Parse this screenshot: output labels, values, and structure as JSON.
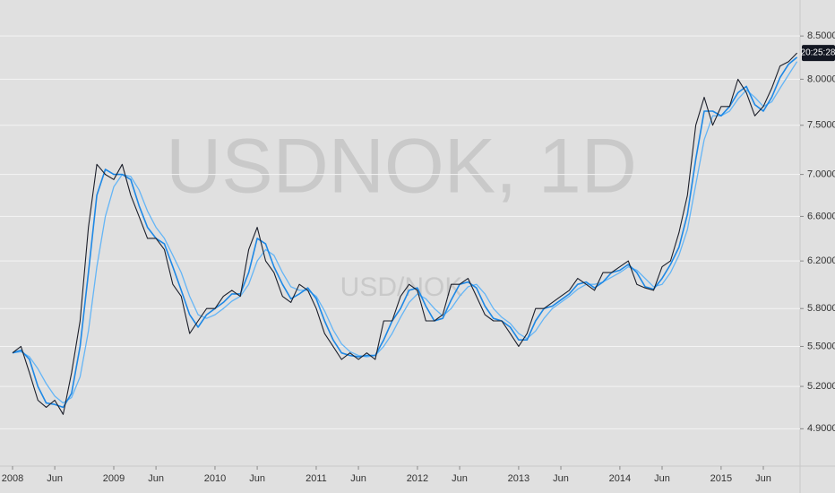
{
  "chart_data": {
    "type": "line",
    "watermark": "USDNOK, 1D",
    "subwatermark": "USD/NOK",
    "price_label": "20:25:28",
    "log_scale": true,
    "grid": true,
    "xlim": [
      2007.876,
      2015.78
    ],
    "ylim": [
      4.65,
      8.94
    ],
    "yticks": [
      {
        "value": 4.9,
        "label": "4.9000"
      },
      {
        "value": 5.2,
        "label": "5.2000"
      },
      {
        "value": 5.5,
        "label": "5.5000"
      },
      {
        "value": 5.8,
        "label": "5.8000"
      },
      {
        "value": 6.2,
        "label": "6.2000"
      },
      {
        "value": 6.6,
        "label": "6.6000"
      },
      {
        "value": 7.0,
        "label": "7.0000"
      },
      {
        "value": 7.5,
        "label": "7.5000"
      },
      {
        "value": 8.0,
        "label": "8.0000"
      },
      {
        "value": 8.5,
        "label": "8.5000"
      }
    ],
    "xticks": [
      {
        "value": 2008,
        "label": "2008"
      },
      {
        "value": 2008.417,
        "label": "Jun"
      },
      {
        "value": 2009,
        "label": "2009"
      },
      {
        "value": 2009.417,
        "label": "Jun"
      },
      {
        "value": 2010,
        "label": "2010"
      },
      {
        "value": 2010.417,
        "label": "Jun"
      },
      {
        "value": 2011,
        "label": "2011"
      },
      {
        "value": 2011.417,
        "label": "Jun"
      },
      {
        "value": 2012,
        "label": "2012"
      },
      {
        "value": 2012.417,
        "label": "Jun"
      },
      {
        "value": 2013,
        "label": "2013"
      },
      {
        "value": 2013.417,
        "label": "Jun"
      },
      {
        "value": 2014,
        "label": "2014"
      },
      {
        "value": 2014.417,
        "label": "Jun"
      },
      {
        "value": 2015,
        "label": "2015"
      },
      {
        "value": 2015.417,
        "label": "Jun"
      }
    ],
    "x": [
      2008,
      2008.083,
      2008.167,
      2008.25,
      2008.333,
      2008.417,
      2008.5,
      2008.583,
      2008.667,
      2008.75,
      2008.833,
      2008.917,
      2009,
      2009.083,
      2009.167,
      2009.25,
      2009.333,
      2009.417,
      2009.5,
      2009.583,
      2009.667,
      2009.75,
      2009.833,
      2009.917,
      2010,
      2010.083,
      2010.167,
      2010.25,
      2010.333,
      2010.417,
      2010.5,
      2010.583,
      2010.667,
      2010.75,
      2010.833,
      2010.917,
      2011,
      2011.083,
      2011.167,
      2011.25,
      2011.333,
      2011.417,
      2011.5,
      2011.583,
      2011.667,
      2011.75,
      2011.833,
      2011.917,
      2012,
      2012.083,
      2012.167,
      2012.25,
      2012.333,
      2012.417,
      2012.5,
      2012.583,
      2012.667,
      2012.75,
      2012.833,
      2012.917,
      2013,
      2013.083,
      2013.167,
      2013.25,
      2013.333,
      2013.417,
      2013.5,
      2013.583,
      2013.667,
      2013.75,
      2013.833,
      2013.917,
      2014,
      2014.083,
      2014.167,
      2014.25,
      2014.333,
      2014.417,
      2014.5,
      2014.583,
      2014.667,
      2014.75,
      2014.833,
      2014.917,
      2015,
      2015.083,
      2015.167,
      2015.25,
      2015.333,
      2015.417,
      2015.5,
      2015.583,
      2015.667,
      2015.75
    ],
    "series": [
      {
        "color": "#64b5f6",
        "width": 1.3,
        "values": [
          5.45,
          5.46,
          5.42,
          5.33,
          5.22,
          5.13,
          5.08,
          5.12,
          5.27,
          5.62,
          6.15,
          6.6,
          6.88,
          7.0,
          6.98,
          6.85,
          6.65,
          6.5,
          6.4,
          6.25,
          6.1,
          5.9,
          5.75,
          5.72,
          5.75,
          5.8,
          5.86,
          5.9,
          6.0,
          6.2,
          6.3,
          6.25,
          6.1,
          5.98,
          5.95,
          5.95,
          5.9,
          5.78,
          5.63,
          5.52,
          5.46,
          5.43,
          5.42,
          5.43,
          5.5,
          5.6,
          5.73,
          5.85,
          5.92,
          5.88,
          5.8,
          5.74,
          5.8,
          5.9,
          5.98,
          6.0,
          5.92,
          5.8,
          5.73,
          5.68,
          5.6,
          5.56,
          5.62,
          5.72,
          5.8,
          5.85,
          5.9,
          5.96,
          6.0,
          6.0,
          6.02,
          6.06,
          6.1,
          6.15,
          6.12,
          6.05,
          5.98,
          6.0,
          6.1,
          6.25,
          6.48,
          6.9,
          7.35,
          7.6,
          7.6,
          7.65,
          7.78,
          7.88,
          7.8,
          7.7,
          7.75,
          7.9,
          8.05,
          8.2
        ]
      },
      {
        "color": "#1e88e5",
        "width": 1.6,
        "values": [
          5.45,
          5.47,
          5.4,
          5.2,
          5.08,
          5.07,
          5.05,
          5.15,
          5.5,
          6.1,
          6.8,
          7.05,
          7.0,
          7.0,
          6.95,
          6.7,
          6.5,
          6.4,
          6.35,
          6.15,
          5.95,
          5.75,
          5.65,
          5.75,
          5.8,
          5.85,
          5.92,
          5.92,
          6.1,
          6.4,
          6.35,
          6.15,
          6.0,
          5.88,
          5.92,
          5.97,
          5.88,
          5.7,
          5.55,
          5.45,
          5.43,
          5.42,
          5.43,
          5.43,
          5.55,
          5.7,
          5.8,
          5.95,
          5.97,
          5.82,
          5.7,
          5.72,
          5.87,
          6.0,
          6.02,
          5.97,
          5.82,
          5.72,
          5.7,
          5.65,
          5.55,
          5.55,
          5.7,
          5.8,
          5.82,
          5.87,
          5.92,
          6.0,
          6.02,
          5.97,
          6.02,
          6.1,
          6.12,
          6.17,
          6.1,
          5.98,
          5.96,
          6.05,
          6.17,
          6.32,
          6.62,
          7.15,
          7.65,
          7.65,
          7.6,
          7.7,
          7.85,
          7.92,
          7.72,
          7.65,
          7.8,
          8.02,
          8.17,
          8.25
        ]
      },
      {
        "color": "#1c1f2a",
        "width": 1.1,
        "values": [
          5.45,
          5.5,
          5.3,
          5.1,
          5.05,
          5.1,
          5.0,
          5.3,
          5.7,
          6.5,
          7.1,
          7.0,
          6.95,
          7.1,
          6.8,
          6.6,
          6.4,
          6.4,
          6.3,
          6.0,
          5.9,
          5.6,
          5.7,
          5.8,
          5.8,
          5.9,
          5.95,
          5.9,
          6.3,
          6.5,
          6.2,
          6.1,
          5.9,
          5.85,
          6.0,
          5.95,
          5.8,
          5.6,
          5.5,
          5.4,
          5.45,
          5.4,
          5.45,
          5.4,
          5.7,
          5.7,
          5.9,
          6.0,
          5.95,
          5.7,
          5.7,
          5.75,
          6.0,
          6.0,
          6.05,
          5.9,
          5.75,
          5.7,
          5.7,
          5.6,
          5.5,
          5.6,
          5.8,
          5.8,
          5.85,
          5.9,
          5.95,
          6.05,
          6.0,
          5.95,
          6.1,
          6.1,
          6.15,
          6.2,
          6.0,
          5.97,
          5.95,
          6.15,
          6.2,
          6.45,
          6.8,
          7.5,
          7.8,
          7.5,
          7.7,
          7.7,
          8.0,
          7.85,
          7.6,
          7.7,
          7.9,
          8.15,
          8.2,
          8.3
        ]
      }
    ]
  }
}
